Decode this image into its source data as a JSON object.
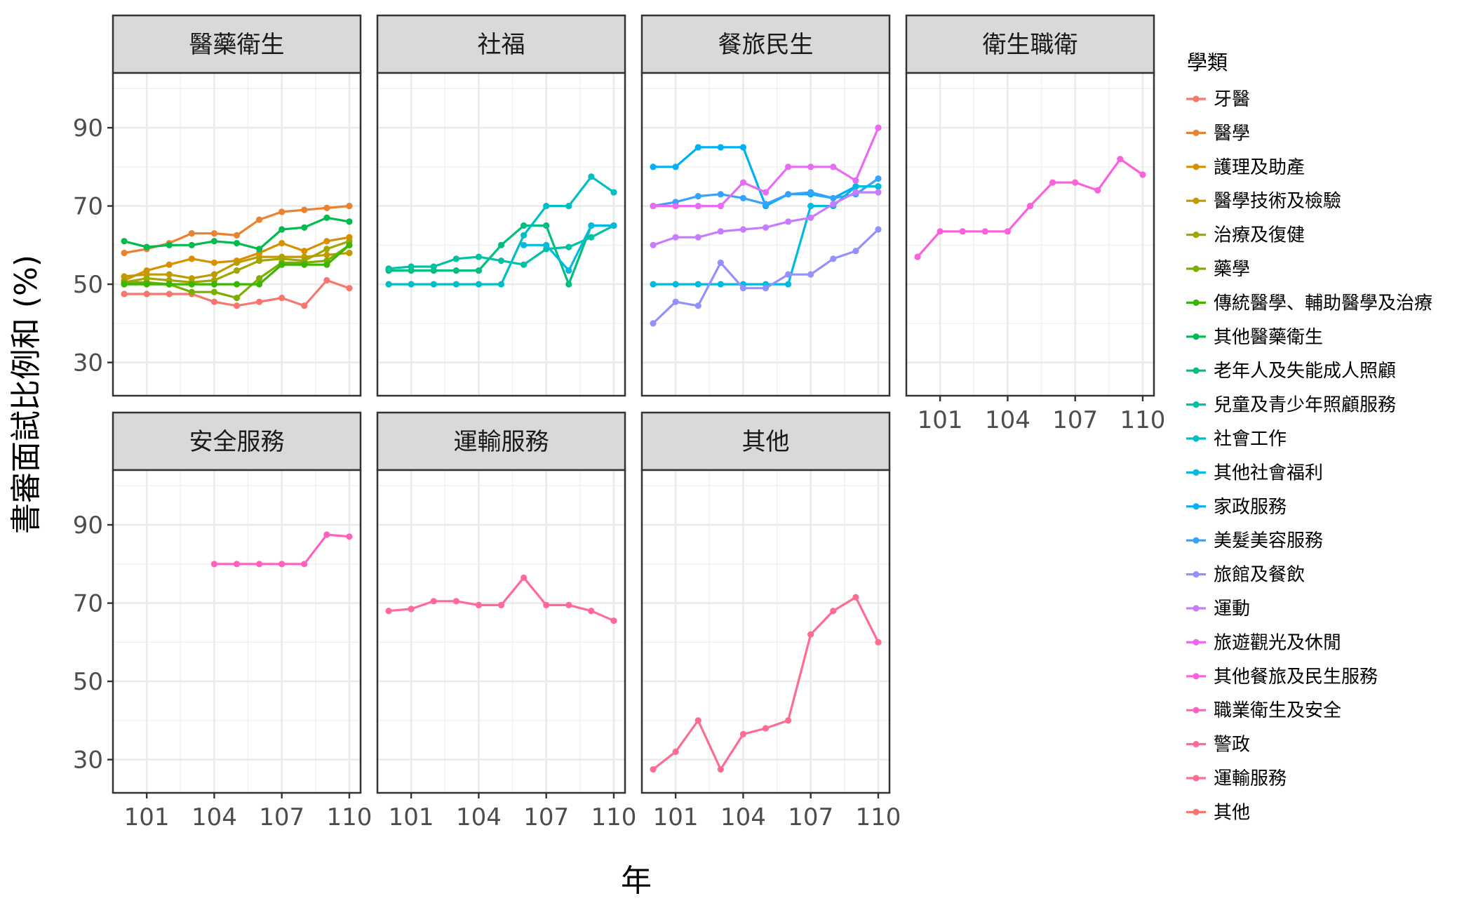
{
  "chart_data": {
    "type": "line",
    "xlabel": "年",
    "ylabel": "書審面試比例和 (%)",
    "x_ticks": [
      101,
      104,
      107,
      110
    ],
    "y_ticks": [
      30,
      50,
      70,
      90
    ],
    "xlim": [
      99.5,
      110.5
    ],
    "ylim": [
      21.5,
      104
    ],
    "grid": true,
    "legend": {
      "title": "學類",
      "position": "right",
      "entries": [
        {
          "name": "牙醫",
          "color": "#F8766D"
        },
        {
          "name": "醫學",
          "color": "#EA8331"
        },
        {
          "name": "護理及助產",
          "color": "#D89000"
        },
        {
          "name": "醫學技術及檢驗",
          "color": "#C09B00"
        },
        {
          "name": "治療及復健",
          "color": "#A3A500"
        },
        {
          "name": "藥學",
          "color": "#7CAE00"
        },
        {
          "name": "傳統醫學、輔助醫學及治療",
          "color": "#39B600"
        },
        {
          "name": "其他醫藥衛生",
          "color": "#00BB4E"
        },
        {
          "name": "老年人及失能成人照顧",
          "color": "#00BF7D"
        },
        {
          "name": "兒童及青少年照顧服務",
          "color": "#00C1A3"
        },
        {
          "name": "社會工作",
          "color": "#00BFC4"
        },
        {
          "name": "其他社會福利",
          "color": "#00BAE0"
        },
        {
          "name": "家政服務",
          "color": "#00B0F6"
        },
        {
          "name": "美髮美容服務",
          "color": "#35A2FF"
        },
        {
          "name": "旅館及餐飲",
          "color": "#9590FF"
        },
        {
          "name": "運動",
          "color": "#C77CFF"
        },
        {
          "name": "旅遊觀光及休閒",
          "color": "#E76BF3"
        },
        {
          "name": "其他餐旅及民生服務",
          "color": "#FA62DB"
        },
        {
          "name": "職業衛生及安全",
          "color": "#FF62BC"
        },
        {
          "name": "警政",
          "color": "#FF6A98"
        },
        {
          "name": "運輸服務",
          "color": "#FF6C91"
        },
        {
          "name": "其他",
          "color": "#F8766D"
        }
      ]
    },
    "panels": [
      {
        "title": "醫藥衛生",
        "series": [
          {
            "name": "牙醫",
            "color": "#F8766D",
            "x": [
              100,
              101,
              102,
              103,
              104,
              105,
              106,
              107,
              108,
              109,
              110
            ],
            "y": [
              47.5,
              47.5,
              47.5,
              47.5,
              45.5,
              44.5,
              45.5,
              46.5,
              44.5,
              51,
              49
            ]
          },
          {
            "name": "醫學",
            "color": "#EA8331",
            "x": [
              100,
              101,
              102,
              103,
              104,
              105,
              106,
              107,
              108,
              109,
              110
            ],
            "y": [
              58,
              59,
              60.5,
              63,
              63,
              62.5,
              66.5,
              68.5,
              69,
              69.5,
              70
            ]
          },
          {
            "name": "護理及助產",
            "color": "#D89000",
            "x": [
              100,
              101,
              102,
              103,
              104,
              105,
              106,
              107,
              108,
              109,
              110
            ],
            "y": [
              51,
              53.5,
              55,
              56.5,
              55.5,
              56,
              58,
              60.5,
              58.5,
              61,
              62
            ]
          },
          {
            "name": "醫學技術及檢驗",
            "color": "#C09B00",
            "x": [
              100,
              101,
              102,
              103,
              104,
              105,
              106,
              107,
              108,
              109,
              110
            ],
            "y": [
              52,
              52.5,
              52.5,
              51.5,
              52.5,
              55.5,
              57,
              57,
              57,
              57.5,
              58
            ]
          },
          {
            "name": "治療及復健",
            "color": "#A3A500",
            "x": [
              100,
              101,
              102,
              103,
              104,
              105,
              106,
              107,
              108,
              109,
              110
            ],
            "y": [
              50.5,
              51.5,
              51,
              50.5,
              51,
              53.5,
              56,
              56.5,
              56,
              59,
              61
            ]
          },
          {
            "name": "藥學",
            "color": "#7CAE00",
            "x": [
              100,
              101,
              102,
              103,
              104,
              105,
              106,
              107,
              108,
              109,
              110
            ],
            "y": [
              50.5,
              50.5,
              50,
              48,
              48,
              46.5,
              51.5,
              55.5,
              55.5,
              56,
              60
            ]
          },
          {
            "name": "傳統醫學、輔助醫學及治療",
            "color": "#39B600",
            "x": [
              100,
              101,
              102,
              103,
              104,
              105,
              106,
              107,
              108,
              109,
              110
            ],
            "y": [
              50,
              50,
              50,
              50,
              50,
              50,
              50,
              55,
              55,
              55,
              60
            ]
          },
          {
            "name": "其他醫藥衛生",
            "color": "#00BB4E",
            "x": [
              100,
              101,
              102,
              103,
              104,
              105,
              106,
              107,
              108,
              109,
              110
            ],
            "y": [
              61,
              59.5,
              60,
              60,
              61,
              60.5,
              59,
              64,
              64.5,
              67,
              66
            ]
          }
        ]
      },
      {
        "title": "社福",
        "series": [
          {
            "name": "老年人及失能成人照顧",
            "color": "#00BF7D",
            "x": [
              100,
              101,
              102,
              103,
              104,
              105,
              106,
              107,
              108,
              109,
              110
            ],
            "y": [
              53.5,
              53.5,
              53.5,
              53.5,
              53.5,
              60,
              65,
              65,
              50,
              65,
              65
            ]
          },
          {
            "name": "兒童及青少年照顧服務",
            "color": "#00C1A3",
            "x": [
              100,
              101,
              102,
              103,
              104,
              105,
              106,
              107,
              108,
              109,
              110
            ],
            "y": [
              54,
              54.5,
              54.5,
              56.5,
              57,
              56,
              55,
              59,
              59.5,
              62,
              65
            ]
          },
          {
            "name": "社會工作",
            "color": "#00BFC4",
            "x": [
              100,
              101,
              102,
              103,
              104,
              105,
              106,
              107,
              108,
              109,
              110
            ],
            "y": [
              50,
              50,
              50,
              50,
              50,
              50,
              62.5,
              70,
              70,
              77.5,
              73.5
            ]
          },
          {
            "name": "其他社會福利",
            "color": "#00BAE0",
            "x": [
              106,
              107,
              108,
              109,
              110
            ],
            "y": [
              60,
              60,
              53.5,
              65,
              65
            ]
          }
        ]
      },
      {
        "title": "餐旅民生",
        "series": [
          {
            "name": "家政服務",
            "color": "#00B0F6",
            "x": [
              100,
              101,
              102,
              103,
              104,
              105,
              106,
              107,
              108,
              109,
              110
            ],
            "y": [
              80,
              80,
              85,
              85,
              85,
              70,
              73,
              73,
              72,
              75,
              75
            ]
          },
          {
            "name": "美髮美容服務",
            "color": "#35A2FF",
            "x": [
              100,
              101,
              102,
              103,
              104,
              105,
              106,
              107,
              108,
              109,
              110
            ],
            "y": [
              70,
              71,
              72.5,
              73,
              72,
              70.5,
              73,
              73.5,
              72,
              73,
              77
            ]
          },
          {
            "name": "旅館及餐飲",
            "color": "#00BAE0",
            "x": [
              100,
              101,
              102,
              103,
              104,
              105,
              106,
              107,
              108,
              109,
              110
            ],
            "y": [
              50,
              50,
              50,
              50,
              50,
              50,
              50,
              70,
              70,
              75,
              75
            ]
          },
          {
            "name": "運動",
            "color": "#9590FF",
            "x": [
              100,
              101,
              102,
              103,
              104,
              105,
              106,
              107,
              108,
              109,
              110
            ],
            "y": [
              40,
              45.5,
              44.5,
              55.5,
              49,
              49,
              52.5,
              52.5,
              56.5,
              58.5,
              64
            ]
          },
          {
            "name": "旅遊觀光及休閒",
            "color": "#C77CFF",
            "x": [
              100,
              101,
              102,
              103,
              104,
              105,
              106,
              107,
              108,
              109,
              110
            ],
            "y": [
              60,
              62,
              62,
              63.5,
              64,
              64.5,
              66,
              67,
              70.5,
              73.5,
              73.5
            ]
          },
          {
            "name": "其他餐旅及民生服務",
            "color": "#E76BF3",
            "x": [
              100,
              101,
              102,
              103,
              104,
              105,
              106,
              107,
              108,
              109,
              110
            ],
            "y": [
              70,
              70,
              70,
              70,
              76,
              73.5,
              80,
              80,
              80,
              76.5,
              90
            ]
          }
        ]
      },
      {
        "title": "衛生職衛",
        "series": [
          {
            "name": "職業衛生及安全",
            "color": "#FA62DB",
            "x": [
              100,
              101,
              102,
              103,
              104,
              105,
              106,
              107,
              108,
              109,
              110
            ],
            "y": [
              57,
              63.5,
              63.5,
              63.5,
              63.5,
              70,
              76,
              76,
              74,
              82,
              78
            ]
          }
        ]
      },
      {
        "title": "安全服務",
        "series": [
          {
            "name": "警政",
            "color": "#FF62BC",
            "x": [
              104,
              105,
              106,
              107,
              108,
              109,
              110
            ],
            "y": [
              80,
              80,
              80,
              80,
              80,
              87.5,
              87
            ]
          }
        ]
      },
      {
        "title": "運輸服務",
        "series": [
          {
            "name": "運輸服務",
            "color": "#FF6A98",
            "x": [
              100,
              101,
              102,
              103,
              104,
              105,
              106,
              107,
              108,
              109,
              110
            ],
            "y": [
              68,
              68.5,
              70.5,
              70.5,
              69.5,
              69.5,
              76.5,
              69.5,
              69.5,
              68,
              65.5
            ]
          }
        ]
      },
      {
        "title": "其他",
        "series": [
          {
            "name": "其他",
            "color": "#FF6C91",
            "x": [
              100,
              101,
              102,
              103,
              104,
              105,
              106,
              107,
              108,
              109,
              110
            ],
            "y": [
              27.5,
              32,
              40,
              27.5,
              36.5,
              38,
              40,
              62,
              68,
              71.5,
              60
            ]
          }
        ]
      }
    ]
  }
}
